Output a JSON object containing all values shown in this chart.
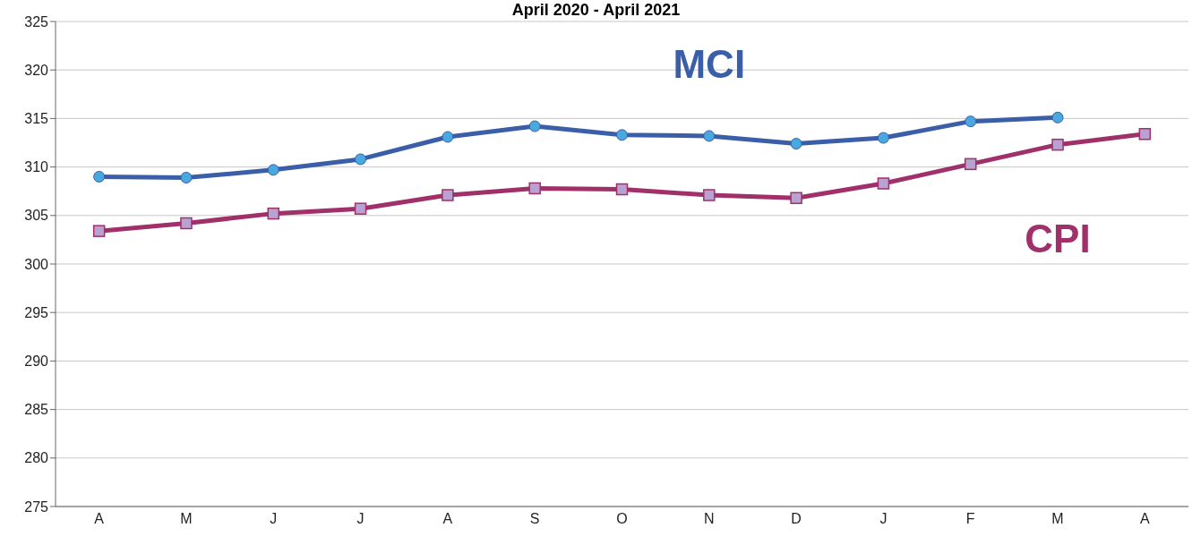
{
  "chart_data": {
    "type": "line",
    "title": "April 2020 - April 2021",
    "categories": [
      "A",
      "M",
      "J",
      "J",
      "A",
      "S",
      "O",
      "N",
      "D",
      "J",
      "F",
      "M",
      "A"
    ],
    "series": [
      {
        "name": "MCI",
        "color": "#3a5ea8",
        "marker": "circle",
        "values": [
          309.0,
          308.9,
          309.7,
          310.8,
          313.1,
          314.2,
          313.3,
          313.2,
          312.4,
          313.0,
          314.7,
          315.1,
          null
        ]
      },
      {
        "name": "CPI",
        "color": "#a0306a",
        "marker": "square",
        "values": [
          303.4,
          304.2,
          305.2,
          305.7,
          307.1,
          307.8,
          307.7,
          307.1,
          306.8,
          308.3,
          310.3,
          312.3,
          313.4
        ]
      }
    ],
    "ylim": [
      275,
      325
    ],
    "yticks": [
      275,
      280,
      285,
      290,
      295,
      300,
      305,
      310,
      315,
      320,
      325
    ],
    "grid": "y"
  }
}
